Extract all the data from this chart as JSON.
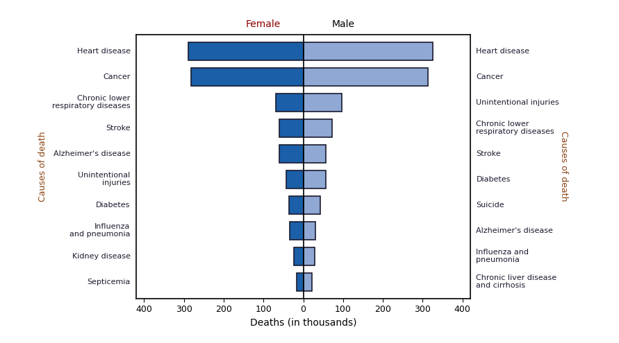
{
  "left_labels": [
    "Heart disease",
    "Cancer",
    "Chronic lower\nrespiratory diseases",
    "Stroke",
    "Alzheimer's disease",
    "Unintentional\ninjuries",
    "Diabetes",
    "Influenza\nand pneumonia",
    "Kidney disease",
    "Septicemia"
  ],
  "right_labels": [
    "Heart disease",
    "Cancer",
    "Unintentional injuries",
    "Chronic lower\nrespiratory diseases",
    "Stroke",
    "Diabetes",
    "Suicide",
    "Alzheimer's disease",
    "Influenza and\npneumonia",
    "Chronic liver disease\nand cirrhosis"
  ],
  "female_values": [
    289,
    282,
    69,
    61,
    60,
    43,
    36,
    34,
    24,
    17
  ],
  "male_values": [
    326,
    314,
    97,
    73,
    57,
    57,
    43,
    30,
    28,
    22
  ],
  "female_color": "#1a5fa8",
  "male_color": "#8fa8d4",
  "xlim": 420,
  "xlabel": "Deaths (in thousands)",
  "left_axis_label": "Causes of death",
  "right_axis_label": "Causes of death",
  "female_header": "Female",
  "male_header": "Male",
  "label_color": "#1a1a2e",
  "axis_label_color": "#8B4513",
  "female_header_color": "#8B0000",
  "male_header_color": "#000000",
  "bar_edgecolor": "#1a1a2e",
  "bar_linewidth": 1.2,
  "bar_height": 0.7,
  "figsize": [
    8.91,
    4.95
  ],
  "dpi": 100,
  "xticks": [
    -400,
    -300,
    -200,
    -100,
    0,
    100,
    200,
    300,
    400
  ],
  "xtick_labels": [
    "400",
    "300",
    "200",
    "100",
    "0",
    "100",
    "200",
    "300",
    "400"
  ]
}
